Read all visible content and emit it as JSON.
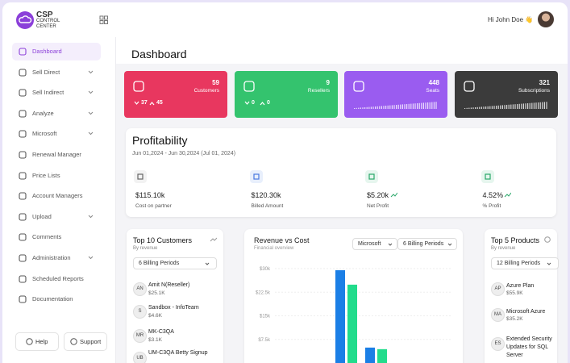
{
  "header": {
    "logo": [
      "CSP",
      "CONTROL",
      "CENTER"
    ],
    "greeting": "Hi John Doe 👋"
  },
  "sidebar": {
    "items": [
      {
        "label": "Dashboard"
      },
      {
        "label": "Sell Direct",
        "expandable": true
      },
      {
        "label": "Sell Indirect",
        "expandable": true
      },
      {
        "label": "Analyze",
        "expandable": true
      },
      {
        "label": "Microsoft",
        "expandable": true
      },
      {
        "label": "Renewal Manager"
      },
      {
        "label": "Price Lists"
      },
      {
        "label": "Account Managers"
      },
      {
        "label": "Upload",
        "expandable": true
      },
      {
        "label": "Comments"
      },
      {
        "label": "Administration",
        "expandable": true
      },
      {
        "label": "Scheduled Reports"
      },
      {
        "label": "Documentation"
      }
    ],
    "footer": [
      "Help",
      "Support"
    ]
  },
  "page_title": "Dashboard",
  "stats": [
    {
      "value": 59,
      "label": "Customers",
      "down": 37,
      "up": 45
    },
    {
      "value": 9,
      "label": "Resellers",
      "down": 0,
      "up": 0
    },
    {
      "value": 448,
      "label": "Seats"
    },
    {
      "value": 321,
      "label": "Subscriptions"
    }
  ],
  "profitability": {
    "title": "Profitability",
    "date_range": "Jun 01,2024 - Jun 30,2024 (Jul 01, 2024)",
    "metrics": [
      {
        "value": "$115.10k",
        "label": "Cost on partner"
      },
      {
        "value": "$120.30k",
        "label": "Billed Amount"
      },
      {
        "value": "$5.20k",
        "label": "Net Profit"
      },
      {
        "value": "4.52%",
        "label": "% Profit"
      }
    ]
  },
  "top_customers": {
    "title": "Top 10 Customers",
    "subtitle": "By revenue",
    "filter": "6 Billing Periods",
    "rows": [
      {
        "initials": "AN",
        "name": "Amit N(Reseller)",
        "revenue": "$25.1K"
      },
      {
        "initials": "S",
        "name": "Sandbox - InfoTeam",
        "revenue": "$4.6K"
      },
      {
        "initials": "MR",
        "name": "MK-C3QA",
        "revenue": "$3.1K"
      },
      {
        "initials": "UB",
        "name": "UM-C3QA Betty Signup"
      }
    ]
  },
  "revenue_chart": {
    "type": "bar",
    "title": "Revenue vs Cost",
    "subtitle": "Financial overview",
    "filters": [
      "Microsoft",
      "6 Billing Periods"
    ],
    "categories": [
      null,
      null
    ],
    "series": [
      {
        "color": "#1b7fe6",
        "values": [
          29500,
          4900
        ]
      },
      {
        "color": "#22dc8c",
        "values": [
          24900,
          4400
        ]
      }
    ],
    "ylim": [
      0,
      30000
    ],
    "yticks": [
      {
        "value": 7500,
        "label": "$7.5k"
      },
      {
        "value": 15000,
        "label": "$15k"
      },
      {
        "value": 22500,
        "label": "$22.5k"
      },
      {
        "value": 30000,
        "label": "$30k"
      }
    ]
  },
  "top_products": {
    "title": "Top 5 Products",
    "subtitle": "By revenue",
    "filter": "12 Billing Periods",
    "rows": [
      {
        "initials": "AP",
        "name": "Azure Plan",
        "revenue": "$55.9K"
      },
      {
        "initials": "MA",
        "name": "Microsoft Azure",
        "revenue": "$35.2K"
      },
      {
        "initials": "ES",
        "name": "Extended Security Updates for SQL Server"
      }
    ]
  }
}
